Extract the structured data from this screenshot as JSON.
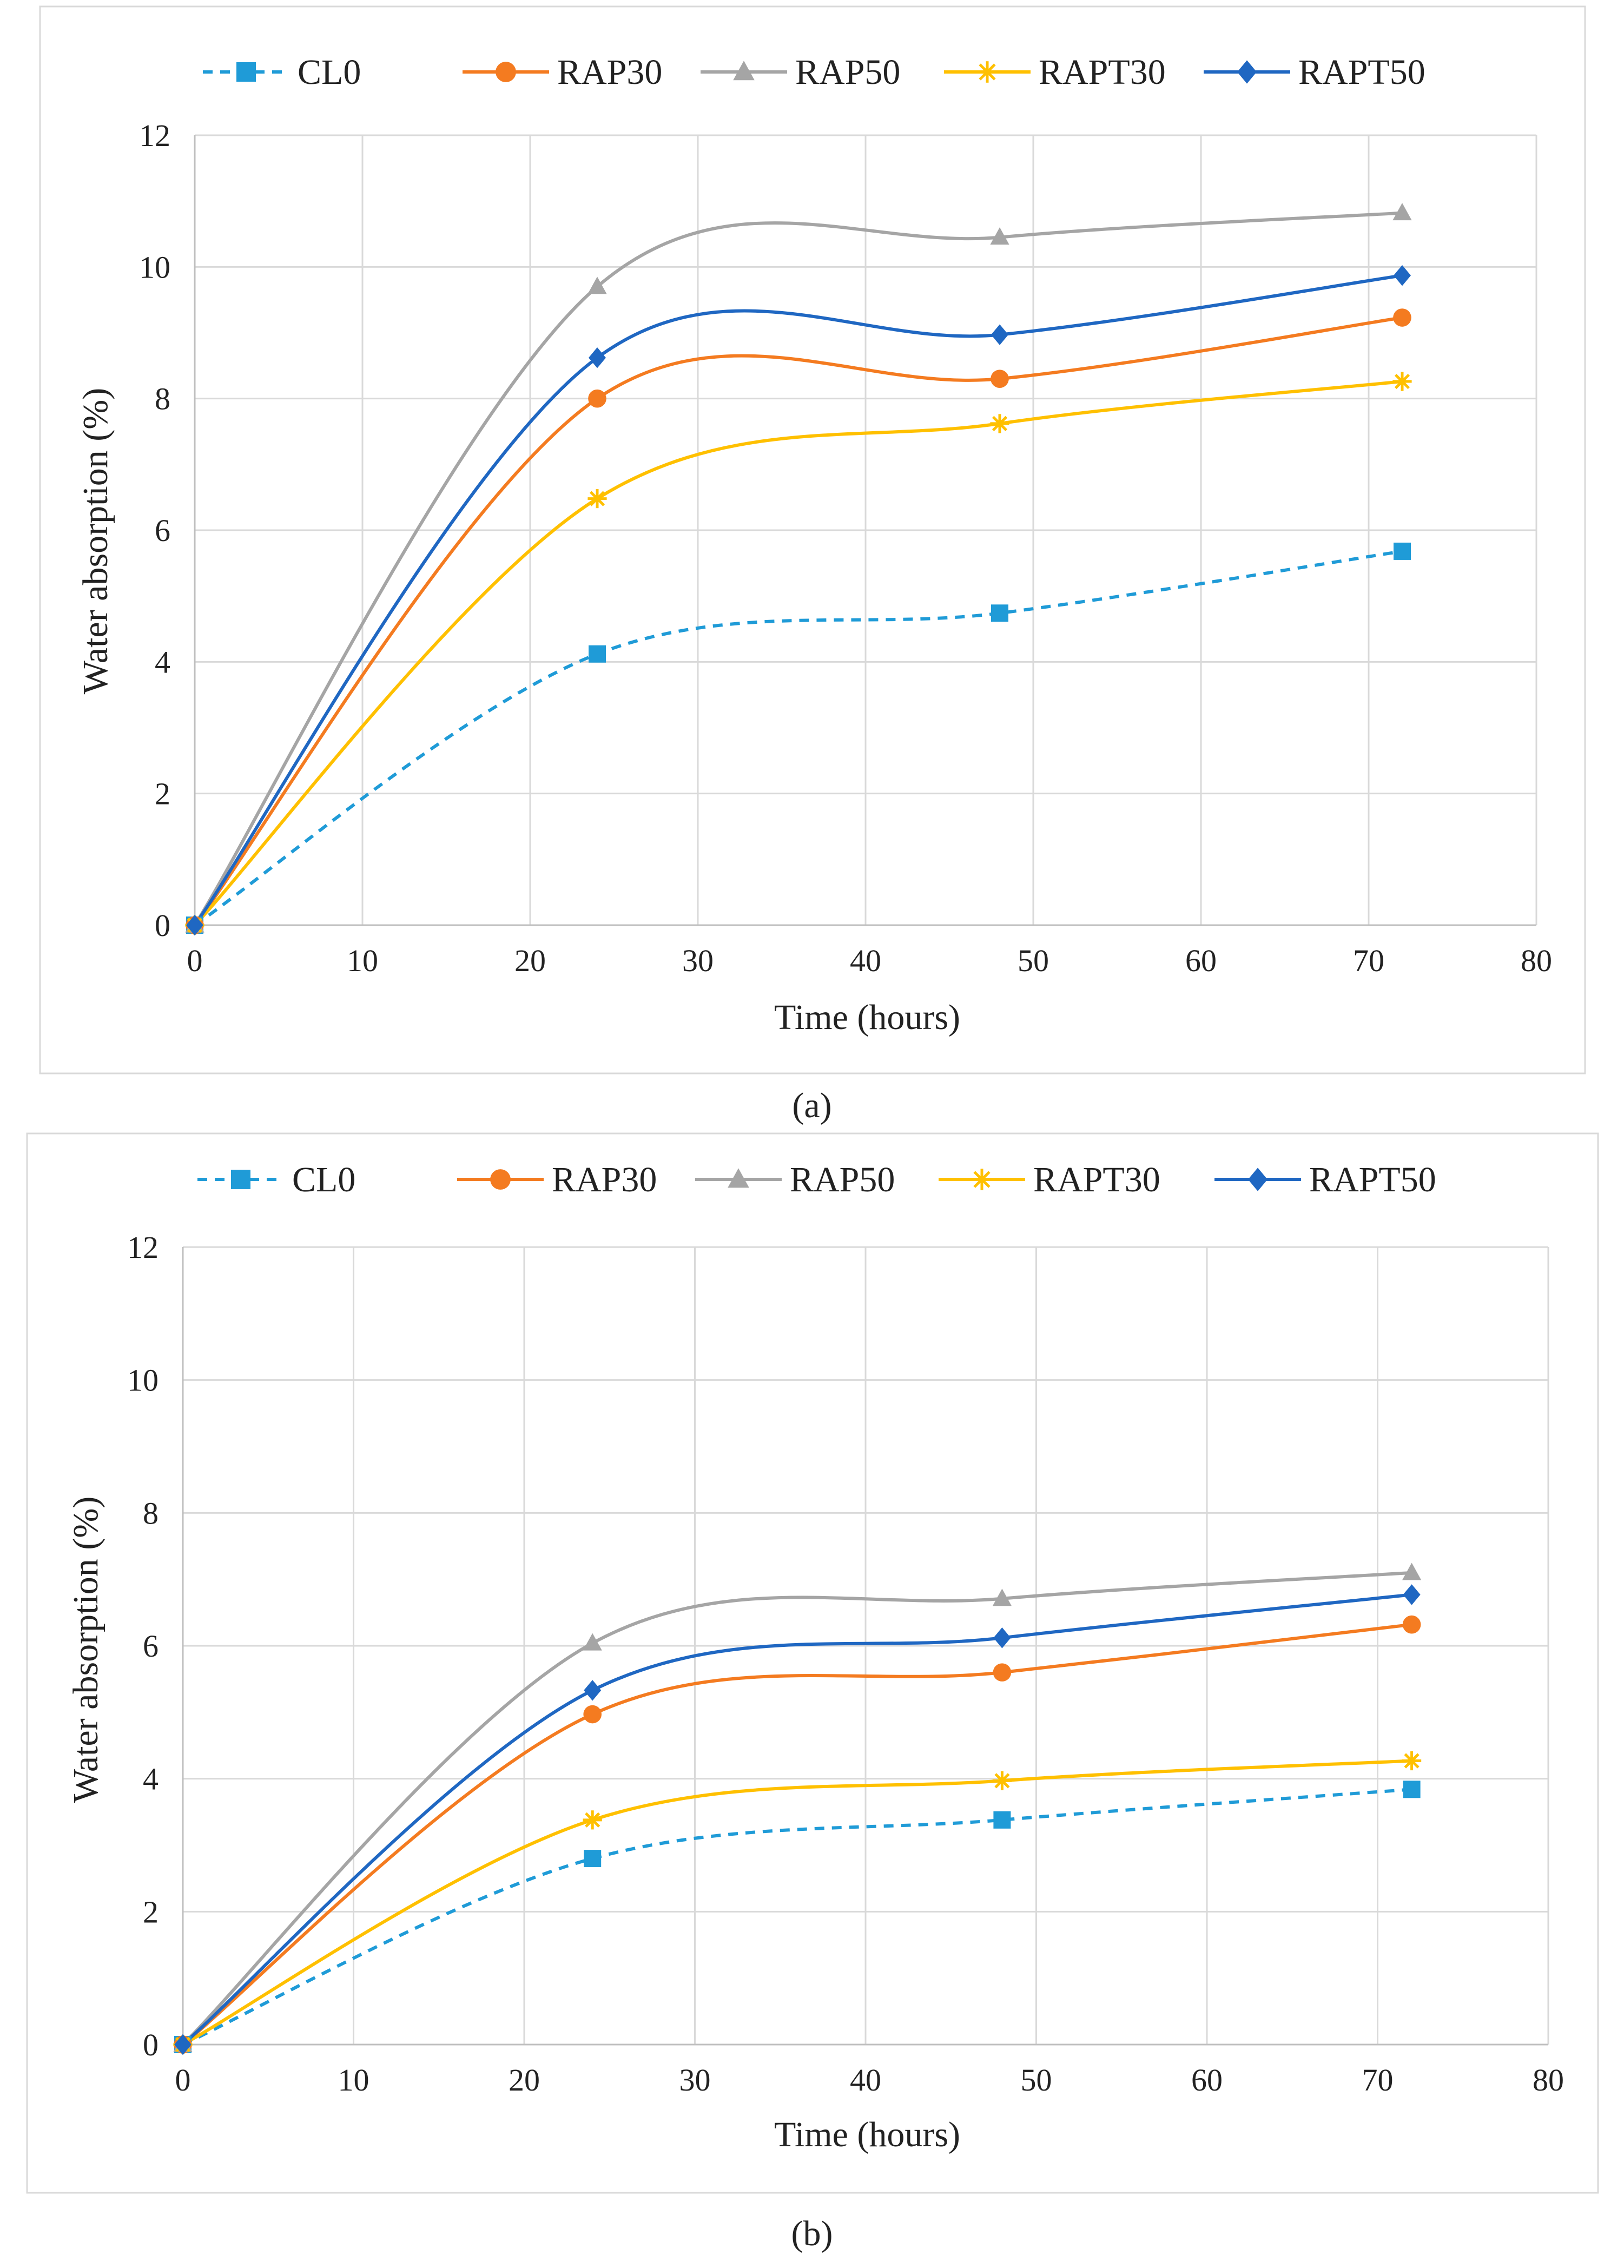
{
  "chart_data": [
    {
      "panel_label": "a",
      "type": "line",
      "title": "",
      "xlabel": "Time (hours)",
      "ylabel": "Water absorption  (%)",
      "xlim": [
        0,
        80
      ],
      "ylim": [
        0,
        12
      ],
      "xticks": [
        0,
        10,
        20,
        30,
        40,
        50,
        60,
        70,
        80
      ],
      "yticks": [
        0,
        2,
        4,
        6,
        8,
        10,
        12
      ],
      "grid": true,
      "legend_position": "top",
      "x": [
        0,
        24,
        48,
        72
      ],
      "series": [
        {
          "name": "CL0",
          "color": "#1f9bd7",
          "marker": "square",
          "dashed": true,
          "values": [
            0,
            4.12,
            4.74,
            5.68
          ]
        },
        {
          "name": "RAP30",
          "color": "#f47b20",
          "marker": "circle",
          "dashed": false,
          "values": [
            0,
            8.0,
            8.3,
            9.23
          ]
        },
        {
          "name": "RAP50",
          "color": "#a5a5a5",
          "marker": "triangle",
          "dashed": false,
          "values": [
            0,
            9.7,
            10.45,
            10.82
          ]
        },
        {
          "name": "RAPT30",
          "color": "#ffc000",
          "marker": "star",
          "dashed": false,
          "values": [
            0,
            6.48,
            7.62,
            8.26
          ]
        },
        {
          "name": "RAPT50",
          "color": "#1f67c2",
          "marker": "diamond",
          "dashed": false,
          "values": [
            0,
            8.62,
            8.97,
            9.87
          ]
        }
      ]
    },
    {
      "panel_label": "b",
      "type": "line",
      "title": "",
      "xlabel": "Time (hours)",
      "ylabel": "Water absorption  (%)",
      "xlim": [
        0,
        80
      ],
      "ylim": [
        0,
        12
      ],
      "xticks": [
        0,
        10,
        20,
        30,
        40,
        50,
        60,
        70,
        80
      ],
      "yticks": [
        0,
        2,
        4,
        6,
        8,
        10,
        12
      ],
      "grid": true,
      "legend_position": "top",
      "x": [
        0,
        24,
        48,
        72
      ],
      "series": [
        {
          "name": "CL0",
          "color": "#1f9bd7",
          "marker": "square",
          "dashed": true,
          "values": [
            0,
            2.8,
            3.38,
            3.84
          ]
        },
        {
          "name": "RAP30",
          "color": "#f47b20",
          "marker": "circle",
          "dashed": false,
          "values": [
            0,
            4.97,
            5.6,
            6.32
          ]
        },
        {
          "name": "RAP50",
          "color": "#a5a5a5",
          "marker": "triangle",
          "dashed": false,
          "values": [
            0,
            6.04,
            6.71,
            7.1
          ]
        },
        {
          "name": "RAPT30",
          "color": "#ffc000",
          "marker": "star",
          "dashed": false,
          "values": [
            0,
            3.38,
            3.97,
            4.27
          ]
        },
        {
          "name": "RAPT50",
          "color": "#1f67c2",
          "marker": "diamond",
          "dashed": false,
          "values": [
            0,
            5.33,
            6.12,
            6.77
          ]
        }
      ]
    }
  ],
  "captions": {
    "a": "(a)",
    "b": "(b)"
  }
}
